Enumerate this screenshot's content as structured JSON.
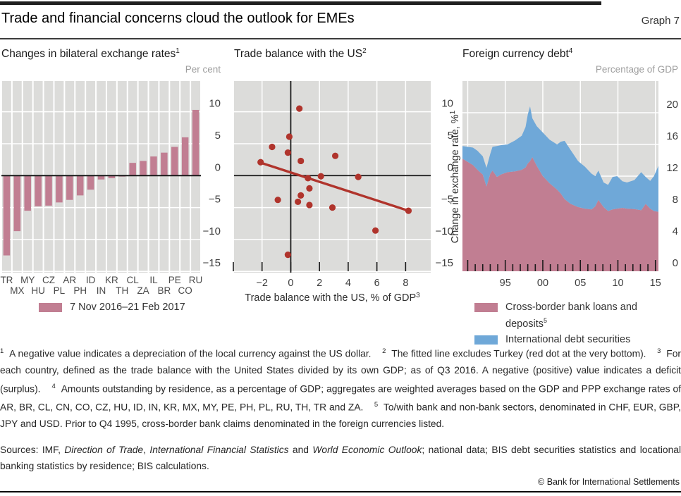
{
  "header": {
    "title": "Trade and financial concerns cloud the outlook for EMEs",
    "graph_label": "Graph 7"
  },
  "colors": {
    "rose": "#c17e92",
    "blue": "#6fa8d8",
    "red": "#b0342c",
    "plot_bg": "#dcdcda",
    "grid": "#ffffff",
    "axis": "#1a1a1a",
    "tick_text": "#3d3d3d",
    "label_text": "#2e2e2e",
    "muted_text": "#9e9e9e"
  },
  "panels": [
    {
      "title": {
        "text": "Changes in bilateral exchange rates",
        "sup": "1"
      },
      "unit": "Per cent"
    },
    {
      "title": {
        "text": "Trade balance with the US",
        "sup": "2"
      },
      "unit": ""
    },
    {
      "title": {
        "text": "Foreign currency debt",
        "sup": "4"
      },
      "unit": "Percentage of GDP"
    }
  ],
  "chart_data": [
    {
      "type": "bar",
      "title": "Changes in bilateral exchange rates",
      "unit": "Per cent",
      "categories": [
        "TR",
        "MX",
        "MY",
        "HU",
        "CZ",
        "PL",
        "AR",
        "PH",
        "ID",
        "IN",
        "KR",
        "TH",
        "CL",
        "ZA",
        "IL",
        "BR",
        "PE",
        "CO",
        "RU"
      ],
      "values": [
        -12.5,
        -8.7,
        -5.5,
        -4.8,
        -4.7,
        -4.2,
        -3.8,
        -3.1,
        -2.2,
        -0.6,
        -0.4,
        -0.15,
        2.0,
        2.3,
        3.0,
        3.6,
        4.5,
        6.0,
        10.3
      ],
      "ylim": [
        -15.2,
        14.82
      ],
      "yticks": [
        -15,
        -10,
        -5,
        0,
        5,
        10
      ],
      "grid": true
    },
    {
      "type": "scatter",
      "title": "Trade balance with the US",
      "xlabel": {
        "text": "Trade balance with the US, % of GDP",
        "sup": "3"
      },
      "ylabel": {
        "text": "Change in exchange rate, %",
        "sup": "1"
      },
      "points": [
        [
          0.6,
          10.5
        ],
        [
          -0.1,
          6.1
        ],
        [
          -1.3,
          4.5
        ],
        [
          -0.2,
          3.6
        ],
        [
          3.1,
          3.1
        ],
        [
          0.7,
          2.3
        ],
        [
          -2.1,
          2.1
        ],
        [
          2.1,
          -0.1
        ],
        [
          4.7,
          -0.2
        ],
        [
          1.2,
          -0.4
        ],
        [
          1.3,
          -2.0
        ],
        [
          0.7,
          -3.1
        ],
        [
          -0.9,
          -3.8
        ],
        [
          0.5,
          -4.1
        ],
        [
          1.3,
          -4.6
        ],
        [
          2.9,
          -5.0
        ],
        [
          8.2,
          -5.5
        ],
        [
          5.9,
          -8.6
        ],
        [
          -0.2,
          -12.4
        ]
      ],
      "fit_line": {
        "x1": -2.2,
        "y1": 2.1,
        "x2": 8.2,
        "y2": -5.5
      },
      "xlim": [
        -3.95,
        9.75
      ],
      "ylim": [
        -15.2,
        14.82
      ],
      "xticks": [
        -4,
        -2,
        0,
        2,
        4,
        6,
        8
      ],
      "xtick_labels": [
        "",
        "−2",
        "0",
        "2",
        "4",
        "6",
        "8"
      ],
      "yticks": [
        -15,
        -10,
        -5,
        0,
        5,
        10
      ],
      "grid": true
    },
    {
      "type": "area",
      "title": "Foreign currency debt",
      "unit": "Percentage of GDP",
      "stacked": true,
      "x": [
        1989.3,
        1990.0,
        1990.7,
        1991.3,
        1992.0,
        1992.5,
        1993.0,
        1993.3,
        1993.9,
        1994.4,
        1995.3,
        1996.3,
        1997.2,
        1997.7,
        1998.0,
        1998.3,
        1998.6,
        1999.2,
        2000.0,
        2000.9,
        2001.9,
        2002.4,
        2002.9,
        2003.7,
        2004.7,
        2005.6,
        2006.5,
        2007.0,
        2007.4,
        2008.1,
        2008.7,
        2009.3,
        2009.9,
        2010.6,
        2011.2,
        2012.2,
        2013.1,
        2013.7,
        2014.3,
        2014.8,
        2015.4
      ],
      "series": [
        {
          "name": "Cross-border bank loans and deposits",
          "values": [
            14.2,
            13.8,
            13.4,
            12.8,
            12.2,
            10.7,
            12.3,
            12.7,
            11.9,
            12.2,
            12.5,
            12.6,
            12.8,
            13.1,
            13.6,
            13.9,
            14.4,
            13.3,
            12.0,
            11.1,
            10.3,
            9.8,
            9.1,
            8.5,
            8.1,
            7.9,
            7.8,
            8.2,
            9.0,
            8.1,
            7.6,
            7.8,
            7.9,
            8.0,
            7.9,
            7.85,
            7.7,
            8.5,
            7.9,
            7.6,
            7.5
          ]
        },
        {
          "name": "International debt securities",
          "values": [
            1.6,
            1.9,
            2.2,
            2.4,
            2.3,
            2.35,
            2.5,
            3.0,
            3.9,
            3.7,
            3.5,
            3.9,
            4.3,
            5.1,
            6.2,
            6.9,
            4.9,
            5.0,
            5.5,
            5.5,
            5.7,
            6.55,
            7.35,
            6.8,
            5.8,
            5.3,
            4.5,
            3.8,
            3.7,
            3.1,
            3.3,
            4.1,
            4.1,
            3.35,
            3.3,
            3.65,
            4.8,
            3.4,
            3.5,
            4.4,
            5.8
          ]
        }
      ],
      "xlim": [
        1989.3,
        2015.4
      ],
      "ylim": [
        0,
        24
      ],
      "yticks": [
        0,
        4,
        8,
        12,
        16,
        20
      ],
      "xticks_major": [
        1990,
        1995,
        2000,
        2005,
        2010,
        2015
      ],
      "xtick_labels": {
        "1995": "95",
        "2000": "00",
        "2005": "05",
        "2010": "10",
        "2015": "15"
      },
      "grid": true
    }
  ],
  "legends": {
    "fx": [
      {
        "color_key": "rose",
        "label": {
          "text": "7 Nov 2016–21 Feb 2017",
          "sup": ""
        }
      }
    ],
    "debt": [
      {
        "color_key": "rose",
        "label": {
          "text": "Cross-border bank loans and deposits",
          "sup": "5"
        }
      },
      {
        "color_key": "blue",
        "label": {
          "text": "International debt securities",
          "sup": ""
        }
      }
    ]
  },
  "footnotes": [
    {
      "marker": "1",
      "text": "A negative value indicates a depreciation of the local currency against the US dollar."
    },
    {
      "marker": "2",
      "text": "The fitted line excludes Turkey (red dot at the very bottom)."
    },
    {
      "marker": "3",
      "text": "For each country, defined as the trade balance with the United States divided by its own GDP; as of Q3 2016. A negative (positive) value indicates a deficit (surplus)."
    },
    {
      "marker": "4",
      "text": "Amounts outstanding by residence, as a percentage of GDP; aggregates are weighted averages based on the GDP and PPP exchange rates of AR, BR, CL, CN, CO, CZ, HU, ID, IN, KR, MX, MY, PE, PH, PL, RU, TH, TR and ZA."
    },
    {
      "marker": "5",
      "text": "To/with bank and non-bank sectors, denominated in CHF, EUR, GBP, JPY and USD. Prior to Q4 1995, cross-border bank claims denominated in the foreign currencies listed."
    }
  ],
  "sources_runs": [
    {
      "text": "Sources: IMF, ",
      "italic": false
    },
    {
      "text": "Direction of Trade",
      "italic": true
    },
    {
      "text": ", ",
      "italic": false
    },
    {
      "text": "International Financial Statistics",
      "italic": true
    },
    {
      "text": " and ",
      "italic": false
    },
    {
      "text": "World Economic Outlook",
      "italic": true
    },
    {
      "text": "; national data; BIS debt securities statistics and locational banking statistics by residence; BIS calculations.",
      "italic": false
    }
  ],
  "copyright": "© Bank for International Settlements"
}
